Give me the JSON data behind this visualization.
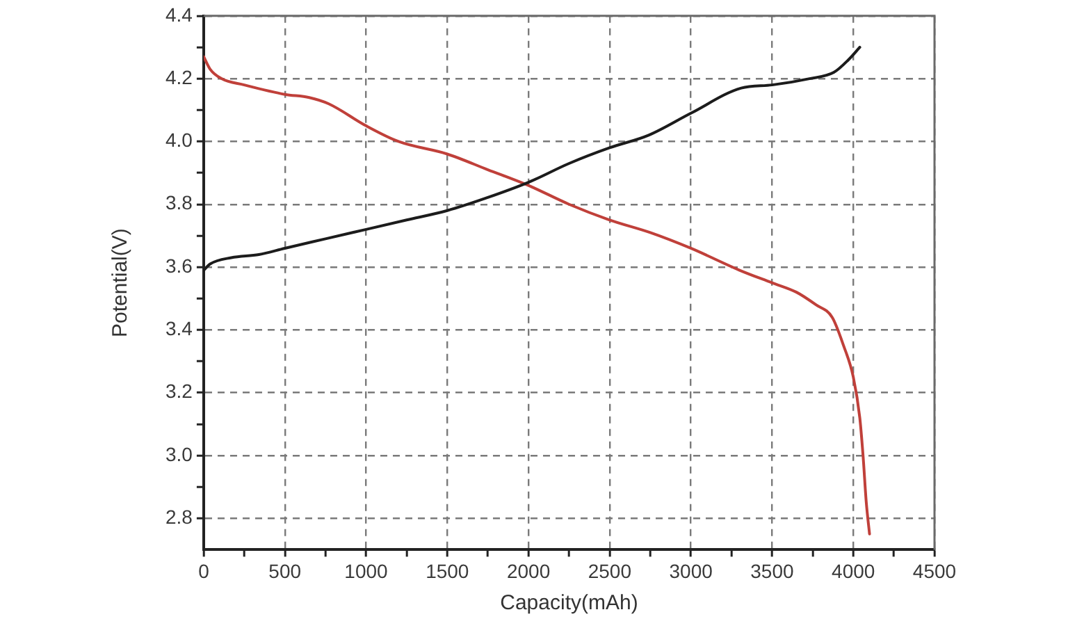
{
  "chart_data": {
    "type": "line",
    "xlabel": "Capacity(mAh)",
    "ylabel": "Potential(V)",
    "xlim": [
      0,
      4500
    ],
    "xticks": [
      0,
      {
        "value": 250,
        "label": null
      },
      500,
      {
        "value": 750,
        "label": null
      },
      1000,
      {
        "value": 1250,
        "label": null
      },
      1500,
      {
        "value": 1750,
        "label": null
      },
      2000,
      {
        "value": 2250,
        "label": null
      },
      2500,
      {
        "value": 2750,
        "label": null
      },
      3000,
      {
        "value": 3250,
        "label": null
      },
      3500,
      {
        "value": 3750,
        "label": null
      },
      4000,
      {
        "value": 4250,
        "label": null
      },
      4500
    ],
    "ylim": [
      2.7,
      4.4
    ],
    "yticks": [
      2.8,
      {
        "value": 2.9,
        "label": null
      },
      {
        "value": 3.0,
        "label": "3.0"
      },
      {
        "value": 3.1,
        "label": null
      },
      3.2,
      {
        "value": 3.3,
        "label": null
      },
      3.4,
      {
        "value": 3.5,
        "label": null
      },
      3.6,
      {
        "value": 3.7,
        "label": null
      },
      3.8,
      {
        "value": 3.9,
        "label": null
      },
      {
        "value": 4.0,
        "label": "4.0"
      },
      {
        "value": 4.1,
        "label": null
      },
      4.2,
      {
        "value": 4.3,
        "label": null
      },
      4.4
    ],
    "grid": true,
    "series": [
      {
        "color": "#1c1c1c",
        "x": [
          0,
          40,
          170,
          340,
          500,
          750,
          1000,
          1250,
          1500,
          1740,
          2000,
          2250,
          2500,
          2740,
          3000,
          3310,
          3500,
          3730,
          3880,
          3970,
          4040
        ],
        "values": [
          3.59,
          3.61,
          3.63,
          3.64,
          3.66,
          3.69,
          3.72,
          3.75,
          3.78,
          3.82,
          3.87,
          3.93,
          3.98,
          4.02,
          4.09,
          4.17,
          4.18,
          4.2,
          4.22,
          4.26,
          4.3
        ]
      },
      {
        "color": "#c0403a",
        "x": [
          0,
          40,
          110,
          250,
          500,
          650,
          770,
          1000,
          1200,
          1500,
          1750,
          2000,
          2250,
          2500,
          2750,
          3000,
          3300,
          3500,
          3650,
          3770,
          3870,
          3940,
          4000,
          4040,
          4060,
          4080,
          4100
        ],
        "values": [
          4.27,
          4.23,
          4.2,
          4.18,
          4.15,
          4.14,
          4.12,
          4.05,
          4.0,
          3.96,
          3.91,
          3.86,
          3.8,
          3.75,
          3.71,
          3.66,
          3.59,
          3.55,
          3.52,
          3.48,
          3.44,
          3.35,
          3.25,
          3.12,
          3.0,
          2.85,
          2.75
        ]
      }
    ]
  }
}
